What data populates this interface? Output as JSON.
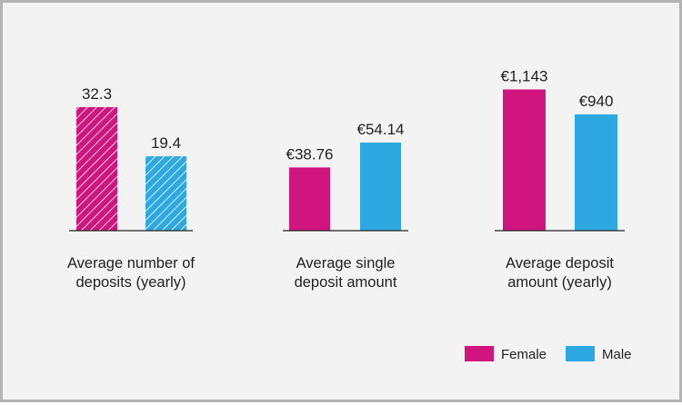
{
  "chart_data": [
    {
      "type": "bar",
      "categories": [
        "Female",
        "Male"
      ],
      "values": [
        32.3,
        19.4
      ],
      "value_labels": [
        "32.3",
        "19.4"
      ],
      "xlabel": [
        "Average number of",
        "deposits (yearly)"
      ],
      "hatched": true
    },
    {
      "type": "bar",
      "categories": [
        "Female",
        "Male"
      ],
      "values": [
        38.76,
        54.14
      ],
      "value_labels": [
        "€38.76",
        "€54.14"
      ],
      "xlabel": [
        "Average single",
        "deposit amount"
      ],
      "hatched": false
    },
    {
      "type": "bar",
      "categories": [
        "Female",
        "Male"
      ],
      "values": [
        1143,
        940
      ],
      "value_labels": [
        "€1,143",
        "€940"
      ],
      "xlabel": [
        "Average deposit",
        "amount (yearly)"
      ],
      "hatched": false
    }
  ],
  "legend": {
    "items": [
      {
        "label": "Female",
        "color": "#d0157f"
      },
      {
        "label": "Male",
        "color": "#2ea8e0"
      }
    ],
    "position": "bottom-right"
  },
  "colors": {
    "female": "#d0157f",
    "male": "#2ea8e0",
    "background": "#f3f3f3",
    "border": "#b3b3b3",
    "axis": "#222222"
  }
}
